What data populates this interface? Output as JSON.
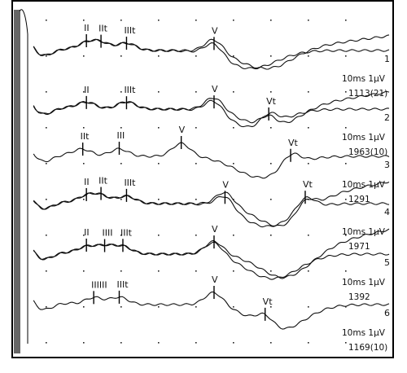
{
  "chart_data": {
    "type": "line",
    "grid": "dotted",
    "legend": "none",
    "traces": [
      {
        "channel": "1",
        "scale": "10ms 1μV",
        "sweeps": "1113(21)",
        "peaks": [
          {
            "label": "II",
            "t": 1.7,
            "pos": "top"
          },
          {
            "label": "IIt",
            "t": 2.1,
            "pos": "top"
          },
          {
            "label": "IIIt",
            "t": 2.8,
            "pos": "top"
          },
          {
            "label": "V",
            "t": 5.2,
            "pos": "top"
          }
        ]
      },
      {
        "channel": "2",
        "scale": "10ms 1μV",
        "sweeps": "1963(10)",
        "peaks": [
          {
            "label": "II",
            "t": 1.7,
            "pos": "top"
          },
          {
            "label": "IIIt",
            "t": 2.8,
            "pos": "top"
          },
          {
            "label": "V",
            "t": 5.2,
            "pos": "top"
          },
          {
            "label": "Vt",
            "t": 6.7,
            "pos": "top"
          }
        ]
      },
      {
        "channel": "3",
        "scale": "10ms 1μV",
        "sweeps": "1291",
        "peaks": [
          {
            "label": "IIt",
            "t": 1.6,
            "pos": "top"
          },
          {
            "label": "III",
            "t": 2.6,
            "pos": "top"
          },
          {
            "label": "V",
            "t": 4.3,
            "pos": "top"
          },
          {
            "label": "Vt",
            "t": 7.3,
            "pos": "top"
          }
        ]
      },
      {
        "channel": "4",
        "scale": "10ms 1μV",
        "sweeps": "1971",
        "peaks": [
          {
            "label": "II",
            "t": 1.7,
            "pos": "top"
          },
          {
            "label": "IIt",
            "t": 2.1,
            "pos": "top"
          },
          {
            "label": "IIIt",
            "t": 2.8,
            "pos": "top"
          },
          {
            "label": "V",
            "t": 5.5,
            "pos": "top"
          },
          {
            "label": "Vt",
            "t": 7.7,
            "pos": "top"
          }
        ]
      },
      {
        "channel": "5",
        "scale": "10ms 1μV",
        "sweeps": "1392",
        "peaks": [
          {
            "label": "II",
            "t": 1.7,
            "pos": "top"
          },
          {
            "label": "IIII",
            "t": 2.2,
            "pos": "top"
          },
          {
            "label": "IIIt",
            "t": 2.7,
            "pos": "top"
          },
          {
            "label": "V",
            "t": 5.2,
            "pos": "top"
          }
        ]
      },
      {
        "channel": "6",
        "scale": "10ms 1μV",
        "sweeps": "1169(10)",
        "peaks": [
          {
            "label": "IIIIII",
            "t": 1.9,
            "pos": "top"
          },
          {
            "label": "IIIt",
            "t": 2.6,
            "pos": "top"
          },
          {
            "label": "V",
            "t": 5.2,
            "pos": "top"
          },
          {
            "label": "Vt",
            "t": 6.6,
            "pos": "top"
          }
        ]
      }
    ]
  }
}
